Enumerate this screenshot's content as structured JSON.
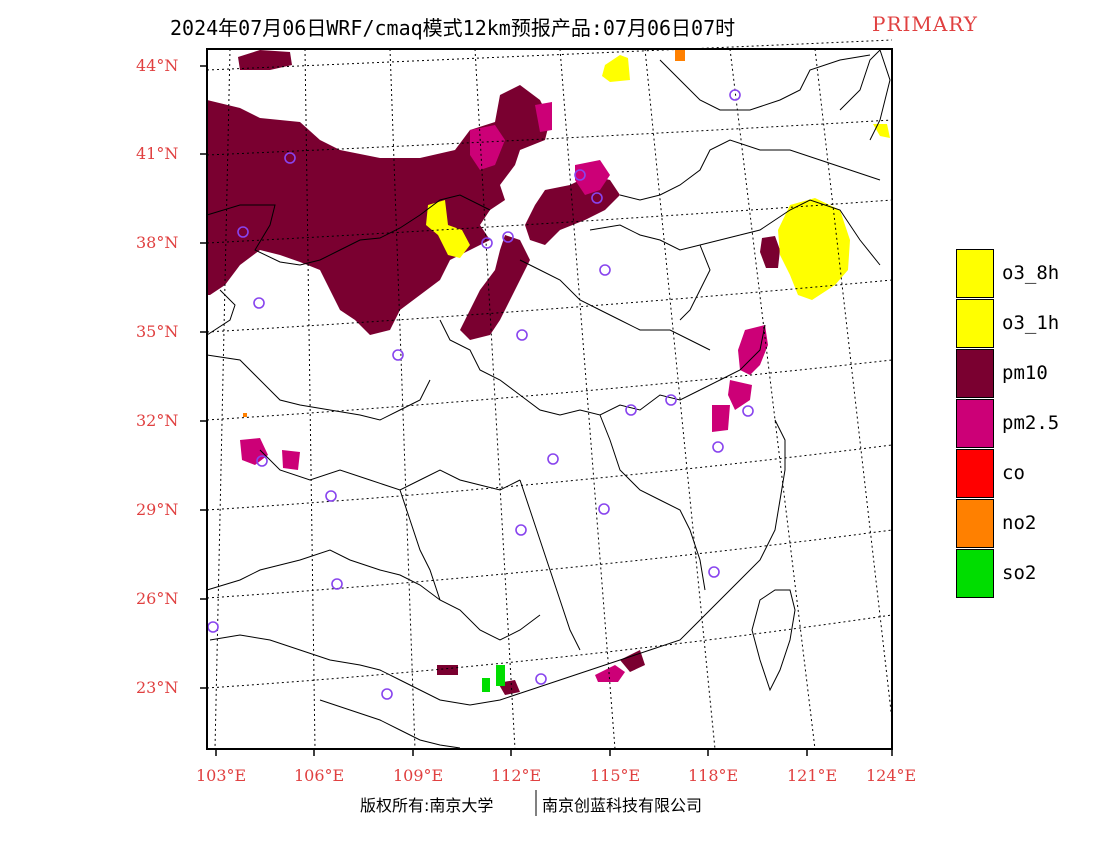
{
  "header": {
    "title": "2024年07月06日WRF/cmaq模式12km预报产品:07月06日07时",
    "tag": "PRIMARY"
  },
  "axes": {
    "lat_labels": [
      "44°N",
      "41°N",
      "38°N",
      "35°N",
      "32°N",
      "29°N",
      "26°N",
      "23°N"
    ],
    "lon_labels": [
      "103°E",
      "106°E",
      "109°E",
      "112°E",
      "115°E",
      "118°E",
      "121°E",
      "124°E"
    ]
  },
  "legend": {
    "items": [
      {
        "label": "o3_8h",
        "color": "#ffff00"
      },
      {
        "label": "o3_1h",
        "color": "#ffff00"
      },
      {
        "label": "pm10",
        "color": "#7a0030"
      },
      {
        "label": "pm2.5",
        "color": "#cc0077"
      },
      {
        "label": "co",
        "color": "#ff0000"
      },
      {
        "label": "no2",
        "color": "#ff8000"
      },
      {
        "label": "so2",
        "color": "#00dd00"
      }
    ]
  },
  "footer": {
    "left": "版权所有:南京大学",
    "right": "南京创蓝科技有限公司"
  },
  "colors": {
    "pm10": "#7a0030",
    "pm25": "#cc0077",
    "o3": "#ffff00",
    "no2": "#ff8000",
    "so2": "#00dd00",
    "station": "#8844ee",
    "label_red": "#e04040"
  }
}
